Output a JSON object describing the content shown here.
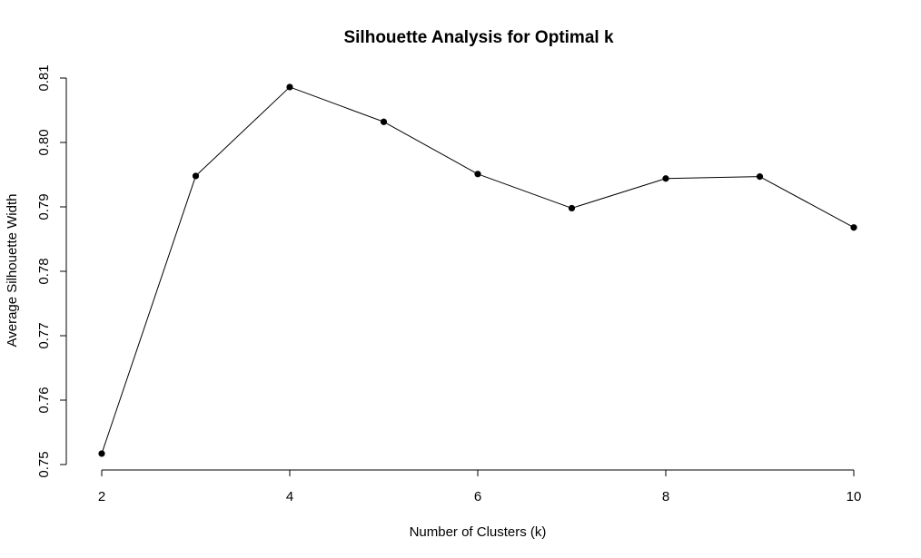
{
  "chart_data": {
    "type": "line",
    "title": "Silhouette Analysis for Optimal k",
    "xlabel": "Number of Clusters (k)",
    "ylabel": "Average Silhouette Width",
    "x": [
      2,
      3,
      4,
      5,
      6,
      7,
      8,
      9,
      10
    ],
    "series": [
      {
        "values": [
          0.7517,
          0.7948,
          0.8086,
          0.8032,
          0.7951,
          0.7898,
          0.7944,
          0.7947,
          0.7868
        ],
        "color": "#000000",
        "marker": "filled-circle"
      }
    ],
    "xlim": [
      2,
      10
    ],
    "ylim": [
      0.75,
      0.81
    ],
    "xticks": [
      2,
      4,
      6,
      8,
      10
    ],
    "yticks": [
      0.75,
      0.76,
      0.77,
      0.78,
      0.79,
      0.8,
      0.81
    ],
    "xtick_labels": [
      "2",
      "4",
      "6",
      "8",
      "10"
    ],
    "ytick_labels": [
      "0.75",
      "0.76",
      "0.77",
      "0.78",
      "0.79",
      "0.80",
      "0.81"
    ],
    "grid": false,
    "legend": "none"
  }
}
